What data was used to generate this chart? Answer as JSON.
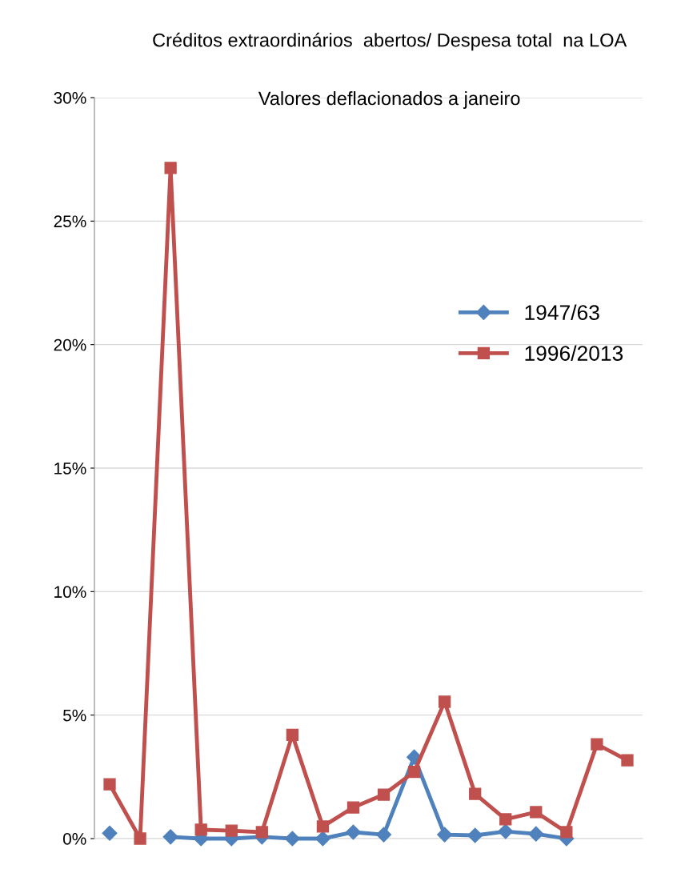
{
  "chart_data": {
    "type": "line",
    "title": "Créditos extraordinários  abertos/ Despesa total  na LOA",
    "subtitle": "Valores deflacionados a janeiro",
    "categories": [
      null,
      null,
      null,
      null,
      null,
      null,
      null,
      null,
      null,
      null,
      null,
      null,
      null,
      null,
      null,
      null,
      null,
      null
    ],
    "series": [
      {
        "name": "1947/63",
        "color": "#4f81bd",
        "marker": "diamond",
        "values": [
          0.22,
          null,
          0.07,
          0,
          0,
          0.07,
          0,
          0,
          0.26,
          0.16,
          3.3,
          0.16,
          0.13,
          0.29,
          0.19,
          0,
          null,
          null
        ]
      },
      {
        "name": "1996/2013",
        "color": "#c0504d",
        "marker": "square",
        "values": [
          2.2,
          0,
          27.15,
          0.36,
          0.32,
          0.26,
          4.2,
          0.49,
          1.26,
          1.78,
          2.7,
          5.54,
          1.81,
          0.78,
          1.07,
          0.26,
          3.82,
          3.17
        ]
      }
    ],
    "ylim": [
      0,
      30
    ],
    "yticks": [
      {
        "value": 0,
        "label": "0%"
      },
      {
        "value": 5,
        "label": "5%"
      },
      {
        "value": 10,
        "label": "10%"
      },
      {
        "value": 15,
        "label": "15%"
      },
      {
        "value": 20,
        "label": "20%"
      },
      {
        "value": 25,
        "label": "25%"
      },
      {
        "value": 30,
        "label": "30%"
      }
    ],
    "grid": "y",
    "legend": "right",
    "line_style": "solid"
  }
}
